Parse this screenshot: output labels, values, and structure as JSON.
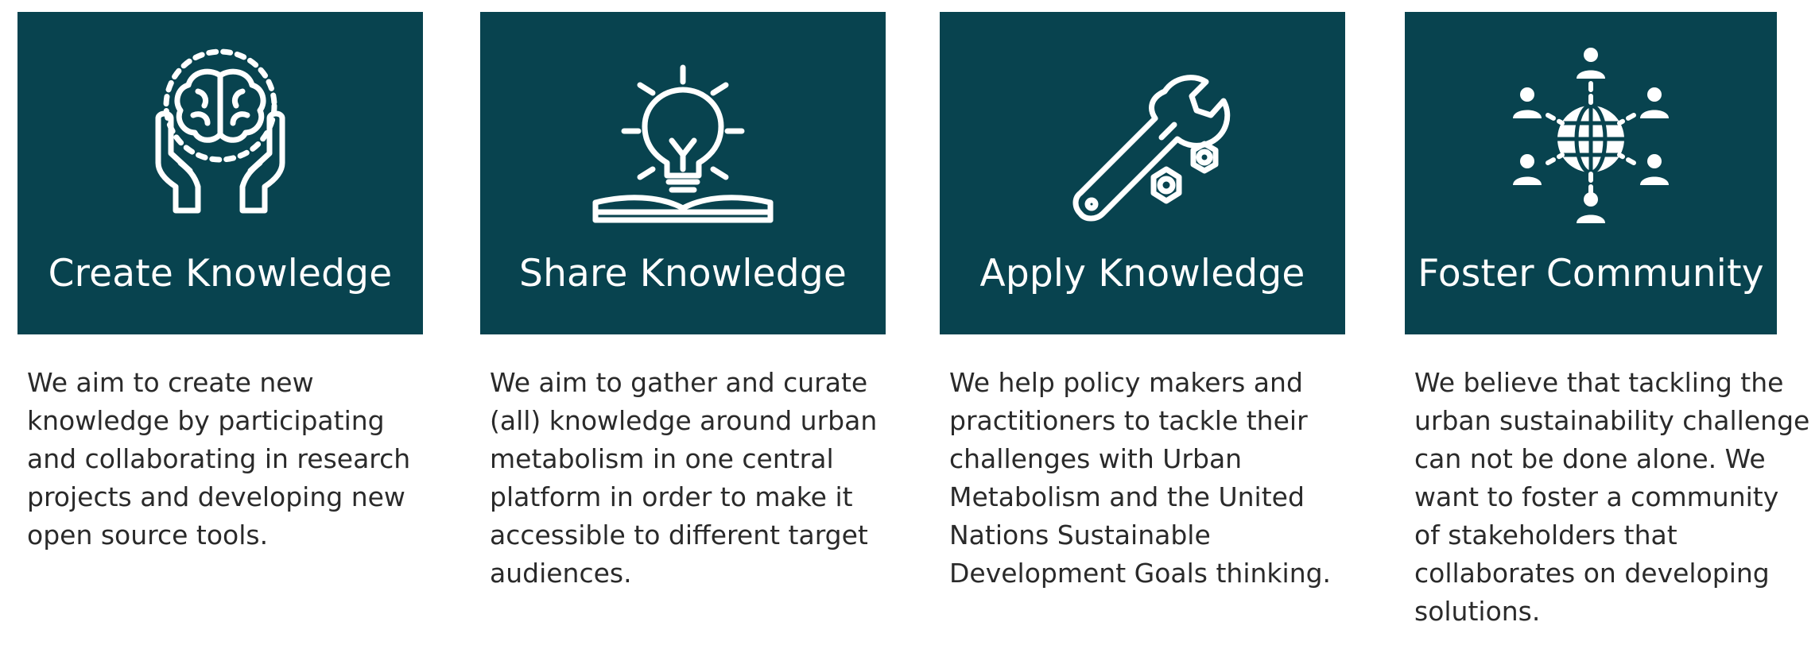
{
  "colors": {
    "tile_background": "#08434f",
    "tile_text": "#ffffff",
    "body_text": "#2a2a2a"
  },
  "cards": [
    {
      "title": "Create Knowledge",
      "icon": "hands-holding-brain-icon",
      "description": "We aim to create new knowledge by participating and collaborating in research projects and developing new open source tools."
    },
    {
      "title": "Share Knowledge",
      "icon": "lightbulb-open-book-icon",
      "description": "We aim to gather and curate (all) knowledge around urban metabolism in one central platform in order to make it accessible to different target audiences."
    },
    {
      "title": "Apply Knowledge",
      "icon": "wrench-and-nuts-icon",
      "description": "We help policy makers and practitioners to tackle their challenges with Urban Metabolism and the United Nations Sustainable Development Goals thinking."
    },
    {
      "title": "Foster Community",
      "icon": "globe-network-people-icon",
      "description": "We believe that tackling the urban sustainability challenge can not be done alone. We want to foster a community of stakeholders that collaborates on developing solutions."
    }
  ]
}
